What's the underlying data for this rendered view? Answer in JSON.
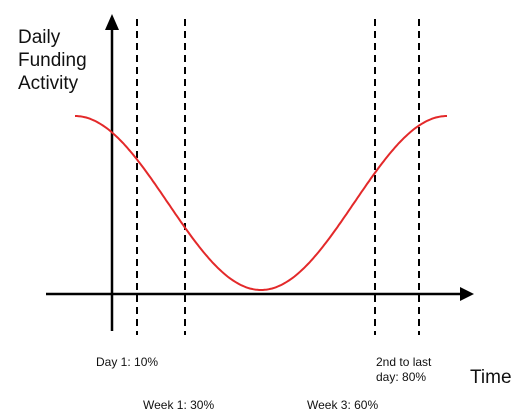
{
  "chart_data": {
    "type": "line",
    "ylabel": [
      "Daily",
      "Funding",
      "Activity"
    ],
    "xlabel": "Time",
    "colors": {
      "curve": "#e3292a",
      "axes": "#000000",
      "markers": "#000000"
    },
    "curve": {
      "shape": "cosine-trough",
      "start_level": 0.8,
      "trough_level": 0.0,
      "end_level": 0.8,
      "trough_position": 0.5
    },
    "markers": [
      {
        "id": "day1",
        "position": 0.15,
        "label": [
          "Day 1: 10%"
        ],
        "label_row": "upper"
      },
      {
        "id": "week1",
        "position": 0.3,
        "label": [
          "Week 1: 30%"
        ],
        "label_row": "lower"
      },
      {
        "id": "week3",
        "position": 0.6,
        "label": [
          "Week 3: 60%"
        ],
        "label_row": "lower"
      },
      {
        "id": "penultimate",
        "position": 0.8,
        "label": [
          "2nd to last",
          "day: 80%"
        ],
        "label_row": "upper"
      }
    ],
    "grid": false,
    "legend": "none",
    "arrows": true
  }
}
